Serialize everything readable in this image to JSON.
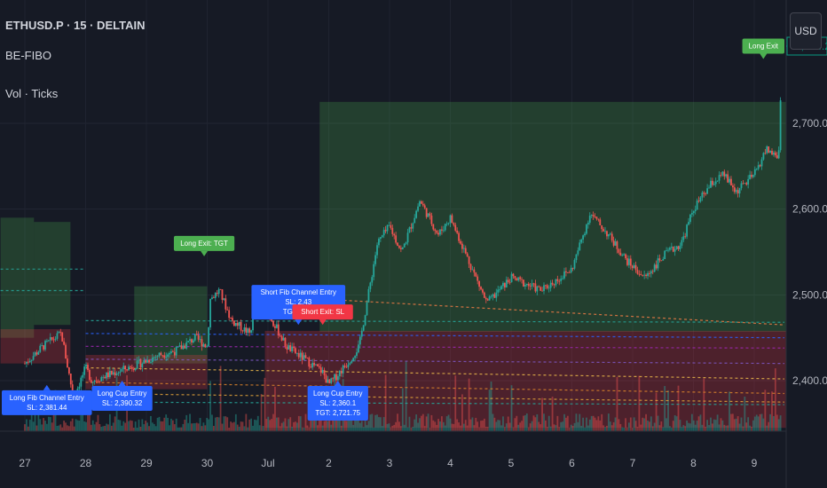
{
  "header": {
    "symbol_line": "ETHUSD.P · 15 · DELTAIN",
    "indicator_1": "BE-FIBO",
    "indicator_2": "Vol · Ticks"
  },
  "currency_button": "USD",
  "last_price": "2,764.20",
  "colors": {
    "background": "#161a25",
    "up": "#26a69a",
    "down": "#ef5350",
    "long_label": "#4caf50",
    "entry_label": "#2962ff",
    "short_exit_label": "#f23645",
    "price_tag": "#089981"
  },
  "chart_data": {
    "type": "candlestick",
    "y_axis": {
      "ticks": [
        2400,
        2500,
        2600,
        2700
      ],
      "tick_labels": [
        "2,400.00",
        "2,500.00",
        "2,600.00",
        "2,700.00"
      ],
      "range": [
        2335,
        2800
      ]
    },
    "x_axis": {
      "tick_labels": [
        "27",
        "28",
        "29",
        "30",
        "Jul",
        "2",
        "3",
        "4",
        "5",
        "6",
        "7",
        "8",
        "9"
      ]
    },
    "price_path": [
      [
        0,
        2420
      ],
      [
        0.3,
        2440
      ],
      [
        0.6,
        2455
      ],
      [
        0.8,
        2380
      ],
      [
        1.0,
        2415
      ],
      [
        1.1,
        2400
      ],
      [
        1.5,
        2410
      ],
      [
        1.9,
        2420
      ],
      [
        2.2,
        2430
      ],
      [
        2.5,
        2435
      ],
      [
        2.8,
        2450
      ],
      [
        3.0,
        2440
      ],
      [
        3.05,
        2495
      ],
      [
        3.2,
        2505
      ],
      [
        3.4,
        2470
      ],
      [
        3.7,
        2455
      ],
      [
        3.85,
        2500
      ],
      [
        4.0,
        2480
      ],
      [
        4.3,
        2440
      ],
      [
        4.6,
        2425
      ],
      [
        4.9,
        2410
      ],
      [
        5.0,
        2395
      ],
      [
        5.3,
        2420
      ],
      [
        5.5,
        2440
      ],
      [
        5.8,
        2560
      ],
      [
        6.0,
        2580
      ],
      [
        6.2,
        2550
      ],
      [
        6.5,
        2610
      ],
      [
        6.8,
        2570
      ],
      [
        7.0,
        2590
      ],
      [
        7.3,
        2540
      ],
      [
        7.6,
        2490
      ],
      [
        8.0,
        2520
      ],
      [
        8.5,
        2505
      ],
      [
        8.7,
        2515
      ],
      [
        9.0,
        2530
      ],
      [
        9.3,
        2595
      ],
      [
        9.6,
        2570
      ],
      [
        9.9,
        2540
      ],
      [
        10.2,
        2520
      ],
      [
        10.5,
        2545
      ],
      [
        10.8,
        2560
      ],
      [
        11.0,
        2600
      ],
      [
        11.3,
        2630
      ],
      [
        11.5,
        2640
      ],
      [
        11.7,
        2620
      ],
      [
        12.0,
        2640
      ],
      [
        12.2,
        2670
      ],
      [
        12.4,
        2660
      ],
      [
        12.45,
        2764
      ]
    ],
    "zones": [
      {
        "kind": "green",
        "x0": -0.4,
        "x1": 0.15,
        "y0": 2450,
        "y1": 2590
      },
      {
        "kind": "green",
        "x0": 0.15,
        "x1": 0.75,
        "y0": 2465,
        "y1": 2585
      },
      {
        "kind": "green",
        "x0": 1.8,
        "x1": 3.0,
        "y0": 2420,
        "y1": 2510
      },
      {
        "kind": "green",
        "x0": 4.85,
        "x1": 12.7,
        "y0": 2457,
        "y1": 2725
      },
      {
        "kind": "red",
        "x0": -0.4,
        "x1": 0.75,
        "y0": 2420,
        "y1": 2460
      },
      {
        "kind": "red",
        "x0": 1.0,
        "x1": 3.0,
        "y0": 2390,
        "y1": 2430
      },
      {
        "kind": "red",
        "x0": 3.95,
        "x1": 12.7,
        "y0": 2345,
        "y1": 2458
      }
    ],
    "trade_labels": [
      {
        "text": [
          "Long Fib Channel Entry",
          "SL: 2,381.44"
        ],
        "kind": "entry",
        "x": 0.1,
        "y": 2395,
        "pointer": "up"
      },
      {
        "text": [
          "Long Cup Entry",
          "SL: 2,390.32"
        ],
        "kind": "entry",
        "x": 1.6,
        "y": 2400,
        "pointer": "up"
      },
      {
        "text": [
          "Long Exit: TGT"
        ],
        "kind": "long",
        "x": 2.95,
        "y": 2545,
        "pointer": "down"
      },
      {
        "text": [
          "Short Fib Channel Entry",
          "SL: 2,43",
          "TGT: 2,33"
        ],
        "kind": "entry",
        "x": 4.5,
        "y": 2465,
        "pointer": "down"
      },
      {
        "text": [
          "Short Exit: SL"
        ],
        "kind": "short_exit",
        "x": 4.9,
        "y": 2465,
        "pointer": "down"
      },
      {
        "text": [
          "Long Cup Entry",
          "SL: 2,360.1",
          "TGT: 2,721.75"
        ],
        "kind": "entry",
        "x": 5.15,
        "y": 2400,
        "pointer": "up"
      },
      {
        "text": [
          "Long Exit"
        ],
        "kind": "long",
        "x": 12.45,
        "y": 2775,
        "pointer": "down"
      }
    ]
  }
}
